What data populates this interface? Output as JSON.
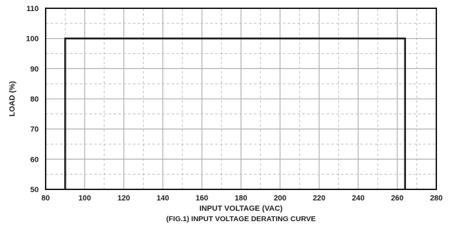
{
  "chart_data": {
    "type": "line",
    "caption": "(FIG.1) INPUT VOLTAGE DERATING CURVE",
    "xlabel": "INPUT VOLTAGE (VAC)",
    "ylabel": "LOAD (%)",
    "xlim": [
      80,
      280
    ],
    "ylim": [
      50,
      110
    ],
    "x_ticks": [
      80,
      100,
      120,
      140,
      160,
      180,
      200,
      220,
      240,
      260,
      280
    ],
    "y_ticks": [
      50,
      60,
      70,
      80,
      90,
      100,
      110
    ],
    "grid": true,
    "series": [
      {
        "x": [
          90,
          90,
          264,
          264
        ],
        "y": [
          50,
          100,
          100,
          50
        ]
      }
    ],
    "colors": {
      "line": "#1a1a1a",
      "grid": "#b4b4b4",
      "frame": "#1a1a1a"
    }
  }
}
